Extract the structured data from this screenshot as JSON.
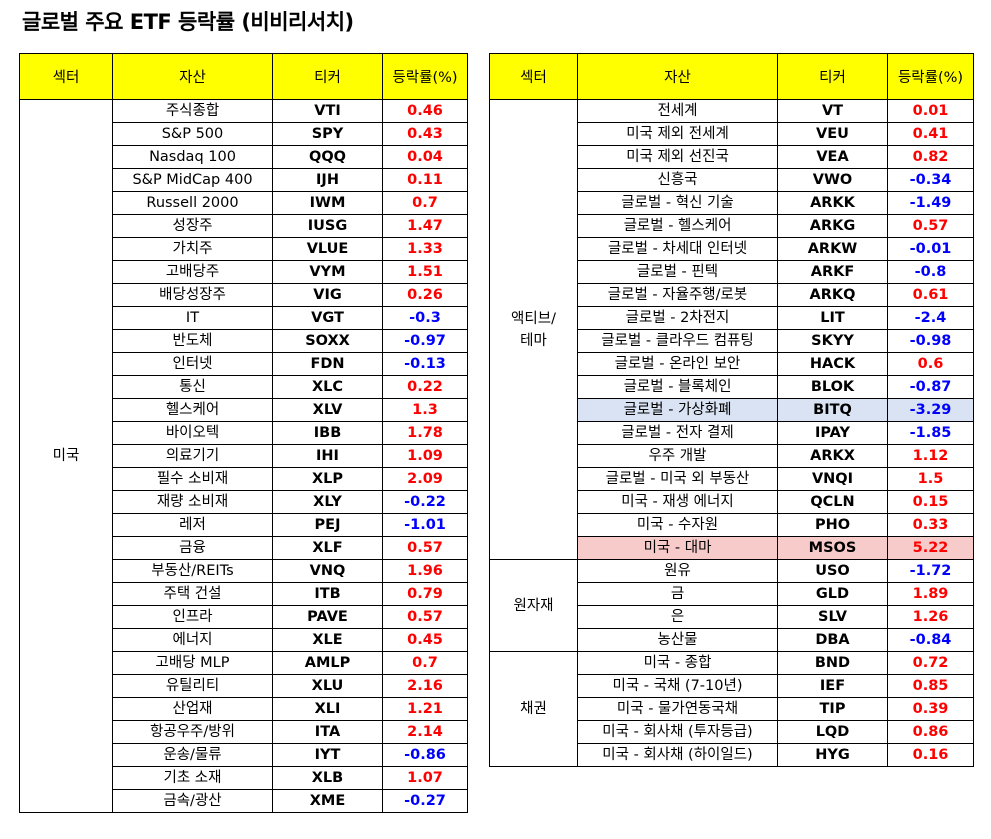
{
  "title": "글로벌 주요 ETF 등락률 (비비리서치)",
  "colors": {
    "header_bg": "#ffff00",
    "positive": "#ff0000",
    "negative": "#0000ff",
    "highlight_blue": "#dae3f3",
    "highlight_red": "#f8cbcb"
  },
  "headers": {
    "sector": "섹터",
    "asset": "자산",
    "ticker": "티커",
    "change": "등락률(%)"
  },
  "left_table": {
    "groups": [
      {
        "sector": "미국",
        "rows": [
          {
            "asset": "주식종합",
            "ticker": "VTI",
            "change": "0.46"
          },
          {
            "asset": "S&P 500",
            "ticker": "SPY",
            "change": "0.43"
          },
          {
            "asset": "Nasdaq 100",
            "ticker": "QQQ",
            "change": "0.04"
          },
          {
            "asset": "S&P MidCap 400",
            "ticker": "IJH",
            "change": "0.11"
          },
          {
            "asset": "Russell 2000",
            "ticker": "IWM",
            "change": "0.7"
          },
          {
            "asset": "성장주",
            "ticker": "IUSG",
            "change": "1.47"
          },
          {
            "asset": "가치주",
            "ticker": "VLUE",
            "change": "1.33"
          },
          {
            "asset": "고배당주",
            "ticker": "VYM",
            "change": "1.51"
          },
          {
            "asset": "배당성장주",
            "ticker": "VIG",
            "change": "0.26"
          },
          {
            "asset": "IT",
            "ticker": "VGT",
            "change": "-0.3"
          },
          {
            "asset": "반도체",
            "ticker": "SOXX",
            "change": "-0.97"
          },
          {
            "asset": "인터넷",
            "ticker": "FDN",
            "change": "-0.13"
          },
          {
            "asset": "통신",
            "ticker": "XLC",
            "change": "0.22"
          },
          {
            "asset": "헬스케어",
            "ticker": "XLV",
            "change": "1.3"
          },
          {
            "asset": "바이오텍",
            "ticker": "IBB",
            "change": "1.78"
          },
          {
            "asset": "의료기기",
            "ticker": "IHI",
            "change": "1.09"
          },
          {
            "asset": "필수 소비재",
            "ticker": "XLP",
            "change": "2.09"
          },
          {
            "asset": "재량 소비재",
            "ticker": "XLY",
            "change": "-0.22"
          },
          {
            "asset": "레저",
            "ticker": "PEJ",
            "change": "-1.01"
          },
          {
            "asset": "금융",
            "ticker": "XLF",
            "change": "0.57"
          },
          {
            "asset": "부동산/REITs",
            "ticker": "VNQ",
            "change": "1.96"
          },
          {
            "asset": "주택 건설",
            "ticker": "ITB",
            "change": "0.79"
          },
          {
            "asset": "인프라",
            "ticker": "PAVE",
            "change": "0.57"
          },
          {
            "asset": "에너지",
            "ticker": "XLE",
            "change": "0.45"
          },
          {
            "asset": "고배당 MLP",
            "ticker": "AMLP",
            "change": "0.7"
          },
          {
            "asset": "유틸리티",
            "ticker": "XLU",
            "change": "2.16"
          },
          {
            "asset": "산업재",
            "ticker": "XLI",
            "change": "1.21"
          },
          {
            "asset": "항공우주/방위",
            "ticker": "ITA",
            "change": "2.14"
          },
          {
            "asset": "운송/물류",
            "ticker": "IYT",
            "change": "-0.86"
          },
          {
            "asset": "기초 소재",
            "ticker": "XLB",
            "change": "1.07"
          },
          {
            "asset": "금속/광산",
            "ticker": "XME",
            "change": "-0.27"
          }
        ]
      }
    ]
  },
  "right_table": {
    "groups": [
      {
        "sector": "액티브/\n테마",
        "rows": [
          {
            "asset": "전세계",
            "ticker": "VT",
            "change": "0.01"
          },
          {
            "asset": "미국 제외 전세계",
            "ticker": "VEU",
            "change": "0.41"
          },
          {
            "asset": "미국 제외 선진국",
            "ticker": "VEA",
            "change": "0.82"
          },
          {
            "asset": "신흥국",
            "ticker": "VWO",
            "change": "-0.34"
          },
          {
            "asset": "글로벌 - 혁신 기술",
            "ticker": "ARKK",
            "change": "-1.49"
          },
          {
            "asset": "글로벌 - 헬스케어",
            "ticker": "ARKG",
            "change": "0.57"
          },
          {
            "asset": "글로벌 - 차세대 인터넷",
            "ticker": "ARKW",
            "change": "-0.01"
          },
          {
            "asset": "글로벌 - 핀텍",
            "ticker": "ARKF",
            "change": "-0.8"
          },
          {
            "asset": "글로벌 - 자율주행/로봇",
            "ticker": "ARKQ",
            "change": "0.61"
          },
          {
            "asset": "글로벌 - 2차전지",
            "ticker": "LIT",
            "change": "-2.4"
          },
          {
            "asset": "글로벌 - 클라우드 컴퓨팅",
            "ticker": "SKYY",
            "change": "-0.98"
          },
          {
            "asset": "글로벌 - 온라인 보안",
            "ticker": "HACK",
            "change": "0.6"
          },
          {
            "asset": "글로벌 - 블록체인",
            "ticker": "BLOK",
            "change": "-0.87"
          },
          {
            "asset": "글로벌 - 가상화폐",
            "ticker": "BITQ",
            "change": "-3.29",
            "highlight": "blue"
          },
          {
            "asset": "글로벌 - 전자 결제",
            "ticker": "IPAY",
            "change": "-1.85"
          },
          {
            "asset": "우주 개발",
            "ticker": "ARKX",
            "change": "1.12"
          },
          {
            "asset": "글로벌 - 미국 외 부동산",
            "ticker": "VNQI",
            "change": "1.5"
          },
          {
            "asset": "미국 - 재생 에너지",
            "ticker": "QCLN",
            "change": "0.15"
          },
          {
            "asset": "미국 - 수자원",
            "ticker": "PHO",
            "change": "0.33"
          },
          {
            "asset": "미국 - 대마",
            "ticker": "MSOS",
            "change": "5.22",
            "highlight": "red"
          }
        ]
      },
      {
        "sector": "원자재",
        "rows": [
          {
            "asset": "원유",
            "ticker": "USO",
            "change": "-1.72"
          },
          {
            "asset": "금",
            "ticker": "GLD",
            "change": "1.89"
          },
          {
            "asset": "은",
            "ticker": "SLV",
            "change": "1.26"
          },
          {
            "asset": "농산물",
            "ticker": "DBA",
            "change": "-0.84"
          }
        ]
      },
      {
        "sector": "채권",
        "rows": [
          {
            "asset": "미국 - 종합",
            "ticker": "BND",
            "change": "0.72"
          },
          {
            "asset": "미국 - 국채 (7-10년)",
            "ticker": "IEF",
            "change": "0.85"
          },
          {
            "asset": "미국 - 물가연동국채",
            "ticker": "TIP",
            "change": "0.39"
          },
          {
            "asset": "미국 - 회사채 (투자등급)",
            "ticker": "LQD",
            "change": "0.86"
          },
          {
            "asset": "미국 - 회사채 (하이일드)",
            "ticker": "HYG",
            "change": "0.16"
          }
        ]
      }
    ]
  }
}
